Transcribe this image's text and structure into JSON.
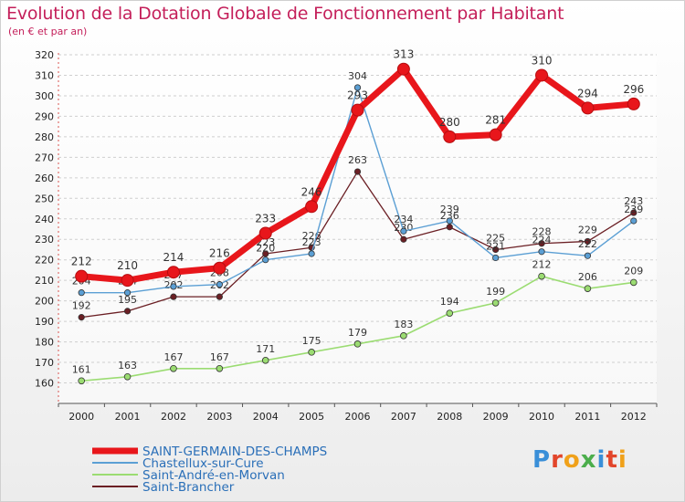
{
  "header": {
    "title": "Evolution de la Dotation Globale de Fonctionnement par Habitant",
    "subtitle": "(en € et par an)"
  },
  "logo": {
    "text": "Proxiti",
    "colors": [
      "#3a8fd8",
      "#e2462b",
      "#f0a11a",
      "#4cae4c",
      "#3a8fd8",
      "#e2462b",
      "#f0a11a"
    ]
  },
  "chart_data": {
    "type": "line",
    "title": "Evolution de la Dotation Globale de Fonctionnement par Habitant",
    "subtitle": "(en € et par an)",
    "xlabel": "",
    "ylabel": "",
    "ylim": [
      150,
      320
    ],
    "yticks": [
      160,
      170,
      180,
      190,
      200,
      210,
      220,
      230,
      240,
      250,
      260,
      270,
      280,
      290,
      300,
      310,
      320
    ],
    "categories": [
      "2000",
      "2001",
      "2002",
      "2003",
      "2004",
      "2005",
      "2006",
      "2007",
      "2008",
      "2009",
      "2010",
      "2011",
      "2012"
    ],
    "grid": true,
    "legend_position": "bottom-left",
    "series": [
      {
        "name": "Saint-Brancher",
        "color": "#6b1f24",
        "values": [
          192,
          195,
          202,
          202,
          223,
          226,
          263,
          230,
          236,
          225,
          228,
          229,
          243
        ],
        "labels": [
          "192",
          "195",
          "202",
          "202",
          "223",
          "226",
          "263",
          "230",
          "236",
          "225",
          "228",
          "229",
          "243"
        ]
      },
      {
        "name": "Saint-André-en-Morvan",
        "color": "#9bdc72",
        "values": [
          161,
          163,
          167,
          167,
          171,
          175,
          179,
          183,
          194,
          199,
          212,
          206,
          209
        ],
        "labels": [
          "161",
          "163",
          "167",
          "167",
          "171",
          "175",
          "179",
          "183",
          "194",
          "199",
          "212",
          "206",
          "209"
        ]
      },
      {
        "name": "Chastellux-sur-Cure",
        "color": "#5b9fd4",
        "values": [
          204,
          204,
          207,
          208,
          220,
          223,
          304,
          234,
          239,
          221,
          224,
          222,
          239
        ],
        "labels": [
          "204",
          "204",
          "207",
          "208",
          "220",
          "223",
          "304",
          "234",
          "239",
          "221",
          "224",
          "222",
          "239"
        ]
      },
      {
        "name": "SAINT-GERMAIN-DES-CHAMPS",
        "color": "#e8161b",
        "values": [
          212,
          210,
          214,
          216,
          233,
          246,
          293,
          313,
          280,
          281,
          310,
          294,
          296
        ],
        "labels": [
          "212",
          "210",
          "214",
          "216",
          "233",
          "246",
          "293",
          "313",
          "280",
          "281",
          "310",
          "294",
          "296"
        ]
      }
    ],
    "legend_order": [
      "SAINT-GERMAIN-DES-CHAMPS",
      "Chastellux-sur-Cure",
      "Saint-André-en-Morvan",
      "Saint-Brancher"
    ]
  }
}
